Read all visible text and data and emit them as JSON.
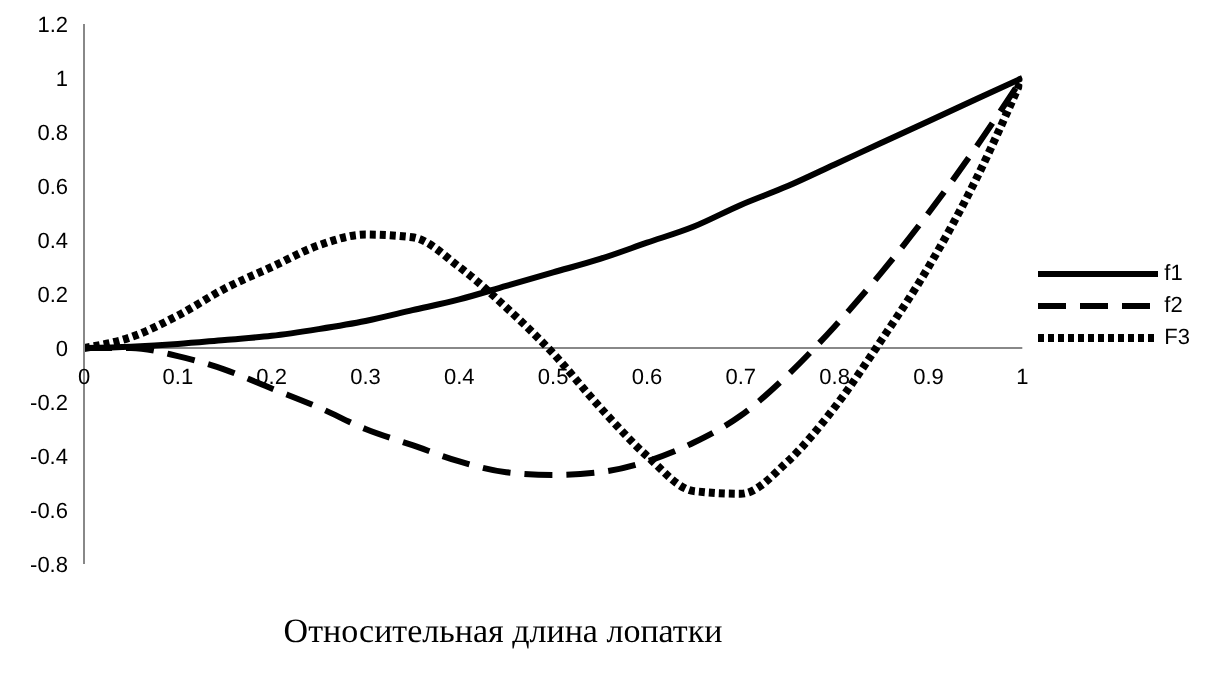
{
  "chart_data": {
    "type": "line",
    "xlabel": "Относительная длина лопатки",
    "xlim": [
      0,
      1
    ],
    "xticks": [
      0,
      0.1,
      0.2,
      0.3,
      0.4,
      0.5,
      0.6,
      0.7,
      0.8,
      0.9,
      1
    ],
    "ylim": [
      -0.8,
      1.2
    ],
    "yticks": [
      -0.8,
      -0.6,
      -0.4,
      -0.2,
      0,
      0.2,
      0.4,
      0.6,
      0.8,
      1,
      1.2
    ],
    "grid": false,
    "legend": "right",
    "marker": "none",
    "x": [
      0,
      0.05,
      0.1,
      0.15,
      0.2,
      0.25,
      0.3,
      0.35,
      0.4,
      0.45,
      0.5,
      0.55,
      0.6,
      0.65,
      0.7,
      0.75,
      0.8,
      0.85,
      0.9,
      0.95,
      1
    ],
    "series": [
      {
        "name": "f1",
        "color": "#000000",
        "line_style": "solid",
        "values": [
          0,
          0.005,
          0.015,
          0.03,
          0.045,
          0.07,
          0.1,
          0.14,
          0.18,
          0.23,
          0.28,
          0.33,
          0.39,
          0.45,
          0.53,
          0.6,
          0.68,
          0.76,
          0.84,
          0.92,
          1
        ]
      },
      {
        "name": "f2",
        "color": "#000000",
        "line_style": "dashed",
        "values": [
          0,
          0,
          -0.03,
          -0.08,
          -0.15,
          -0.22,
          -0.3,
          -0.36,
          -0.42,
          -0.46,
          -0.47,
          -0.46,
          -0.42,
          -0.35,
          -0.25,
          -0.1,
          0.08,
          0.28,
          0.5,
          0.74,
          1
        ]
      },
      {
        "name": "F3",
        "color": "#000000",
        "line_style": "dotted",
        "values": [
          0,
          0.04,
          0.12,
          0.22,
          0.3,
          0.38,
          0.42,
          0.41,
          0.3,
          0.15,
          -0.02,
          -0.22,
          -0.4,
          -0.53,
          -0.54,
          -0.42,
          -0.22,
          0.03,
          0.3,
          0.62,
          1
        ]
      }
    ]
  }
}
